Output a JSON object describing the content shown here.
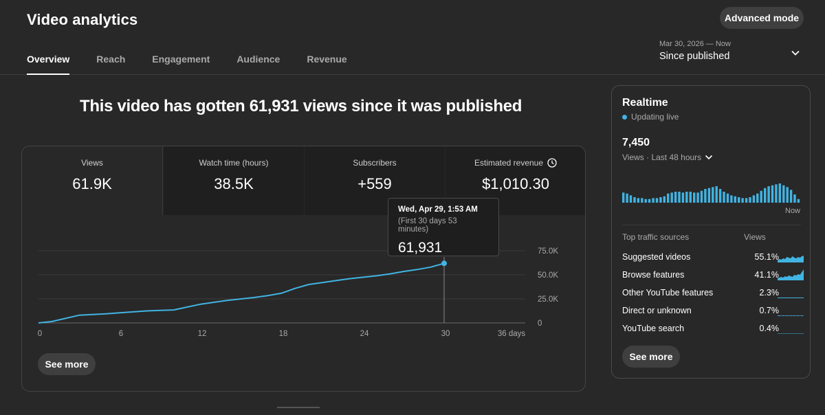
{
  "header": {
    "title": "Video analytics",
    "advanced_label": "Advanced mode",
    "tabs": [
      "Overview",
      "Reach",
      "Engagement",
      "Audience",
      "Revenue"
    ],
    "active_tab": "Overview",
    "date_range": {
      "dates": "Mar 30, 2026 — Now",
      "label": "Since published"
    }
  },
  "headline": "This video has gotten 61,931 views since it was published",
  "metrics": [
    {
      "label": "Views",
      "value": "61.9K"
    },
    {
      "label": "Watch time (hours)",
      "value": "38.5K"
    },
    {
      "label": "Subscribers",
      "value": "+559"
    },
    {
      "label": "Estimated revenue",
      "value": "$1,010.30"
    }
  ],
  "chart_data": {
    "type": "line",
    "x_tick_labels": [
      "0",
      "6",
      "12",
      "18",
      "24",
      "30",
      "36 days"
    ],
    "y_tick_labels": [
      "0",
      "25.0K",
      "50.0K",
      "75.0K"
    ],
    "xlim": [
      0,
      36
    ],
    "ylim": [
      0,
      75000
    ],
    "grid": true,
    "series": [
      {
        "x": [
          0,
          1,
          3,
          5,
          6,
          7,
          8,
          9,
          10,
          11,
          12,
          13,
          14,
          15,
          16,
          17,
          18,
          19,
          20,
          21,
          22,
          23,
          24,
          25,
          26,
          27,
          28,
          29,
          30
        ],
        "y": [
          0,
          1500,
          8000,
          9500,
          10500,
          11500,
          12500,
          13000,
          13500,
          16500,
          19500,
          21500,
          23500,
          25000,
          26500,
          28500,
          31000,
          36000,
          40000,
          42000,
          44000,
          46000,
          47500,
          49000,
          51000,
          53500,
          55500,
          58000,
          61931
        ]
      }
    ],
    "color": "#41b4e3",
    "tooltip": {
      "date": "Wed, Apr 29, 1:53 AM",
      "sub": "(First 30 days 53 minutes)",
      "value": "61,931",
      "x": 30
    }
  },
  "see_more_label": "See more",
  "realtime": {
    "title": "Realtime",
    "status": "Updating live",
    "count": "7,450",
    "subtitle": "Views · Last 48 hours",
    "now_label": "Now",
    "bars": [
      11,
      10,
      8,
      6,
      5,
      5,
      4,
      4,
      5,
      5,
      6,
      7,
      10,
      11,
      12,
      12,
      11,
      12,
      12,
      11,
      11,
      13,
      15,
      16,
      17,
      18,
      15,
      12,
      10,
      8,
      7,
      6,
      5,
      5,
      6,
      8,
      10,
      13,
      16,
      18,
      19,
      20,
      21,
      19,
      17,
      14,
      9,
      4
    ],
    "traffic_header": "Top traffic sources",
    "traffic_views_header": "Views",
    "sources": [
      {
        "name": "Suggested videos",
        "pct": "55.1%",
        "spark": [
          3,
          5,
          4,
          6,
          5,
          8,
          7,
          6,
          9,
          7,
          6,
          8,
          7,
          9,
          10
        ]
      },
      {
        "name": "Browse features",
        "pct": "41.1%",
        "spark": [
          3,
          4,
          5,
          4,
          6,
          5,
          7,
          6,
          5,
          8,
          7,
          9,
          8,
          12,
          16
        ]
      },
      {
        "name": "Other YouTube features",
        "pct": "2.3%",
        "spark": [
          1,
          1,
          1,
          1,
          1,
          1,
          1,
          1,
          1,
          1,
          1,
          1,
          1,
          1,
          1
        ]
      },
      {
        "name": "Direct or unknown",
        "pct": "0.7%",
        "spark": [
          1,
          1,
          0.5,
          1,
          0.5,
          1,
          0.5,
          1,
          0.5,
          1,
          0.5,
          1,
          0.5,
          1,
          0.5
        ]
      },
      {
        "name": "YouTube search",
        "pct": "0.4%",
        "spark": [
          0.5,
          0.5,
          0.5,
          0.5,
          0.5,
          0.5,
          0.5,
          0.5,
          0.5,
          0.5,
          0.5,
          0.5,
          0.5,
          0.5,
          0.5
        ]
      }
    ],
    "see_more_label": "See more"
  },
  "colors": {
    "accent": "#41b4e3",
    "background": "#282828",
    "panel": "#1f1f1f"
  }
}
